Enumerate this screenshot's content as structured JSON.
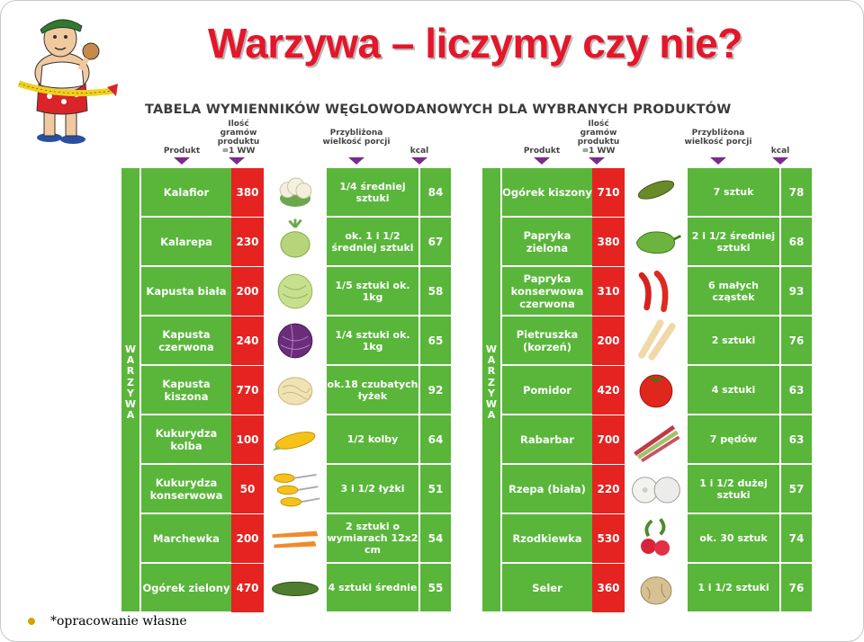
{
  "title": "Warzywa – liczymy czy nie?",
  "table_heading": "TABELA WYMIENNIKÓW WĘGLOWODANOWYCH DLA WYBRANYCH PRODUKTÓW",
  "columns": {
    "product": "Produkt",
    "grams": "Ilość gramów produktu =1 WW",
    "portion": "Przybliżona wielkość porcji",
    "kcal": "kcal"
  },
  "side_label": "WARZYWA",
  "left_rows": [
    {
      "name": "Kalafior",
      "ww": "380",
      "portion": "1/4 średniej sztuki",
      "kcal": "84",
      "icon": "cauliflower-icon"
    },
    {
      "name": "Kalarepa",
      "ww": "230",
      "portion": "ok. 1 i 1/2 średniej sztuki",
      "kcal": "67",
      "icon": "kohlrabi-icon"
    },
    {
      "name": "Kapusta biała",
      "ww": "200",
      "portion": "1/5 sztuki ok. 1kg",
      "kcal": "58",
      "icon": "white-cabbage-icon"
    },
    {
      "name": "Kapusta czerwona",
      "ww": "240",
      "portion": "1/4 sztuki ok. 1kg",
      "kcal": "65",
      "icon": "red-cabbage-icon"
    },
    {
      "name": "Kapusta kiszona",
      "ww": "770",
      "portion": "ok.18 czubatych łyżek",
      "kcal": "92",
      "icon": "sauerkraut-icon"
    },
    {
      "name": "Kukurydza kolba",
      "ww": "100",
      "portion": "1/2 kolby",
      "kcal": "64",
      "icon": "corn-cob-icon"
    },
    {
      "name": "Kukurydza konserwowa",
      "ww": "50",
      "portion": "3 i 1/2 łyżki",
      "kcal": "51",
      "icon": "canned-corn-icon"
    },
    {
      "name": "Marchewka",
      "ww": "200",
      "portion": "2 sztuki o wymiarach 12x2 cm",
      "kcal": "54",
      "icon": "carrot-icon"
    },
    {
      "name": "Ogórek zielony",
      "ww": "470",
      "portion": "4 sztuki średnie",
      "kcal": "55",
      "icon": "cucumber-icon"
    }
  ],
  "right_rows": [
    {
      "name": "Ogórek kiszony",
      "ww": "710",
      "portion": "7 sztuk",
      "kcal": "78",
      "icon": "pickle-icon"
    },
    {
      "name": "Papryka zielona",
      "ww": "380",
      "portion": "2 i 1/2 średniej sztuki",
      "kcal": "68",
      "icon": "green-pepper-icon"
    },
    {
      "name": "Papryka konserwowa czerwona",
      "ww": "310",
      "portion": "6 małych cząstek",
      "kcal": "93",
      "icon": "red-pepper-icon"
    },
    {
      "name": "Pietruszka (korzeń)",
      "ww": "200",
      "portion": "2 sztuki",
      "kcal": "76",
      "icon": "parsley-root-icon"
    },
    {
      "name": "Pomidor",
      "ww": "420",
      "portion": "4 sztuki",
      "kcal": "63",
      "icon": "tomato-icon"
    },
    {
      "name": "Rabarbar",
      "ww": "700",
      "portion": "7 pędów",
      "kcal": "63",
      "icon": "rhubarb-icon"
    },
    {
      "name": "Rzepa (biała)",
      "ww": "220",
      "portion": "1 i 1/2 dużej sztuki",
      "kcal": "57",
      "icon": "turnip-icon"
    },
    {
      "name": "Rzodkiewka",
      "ww": "530",
      "portion": "ok. 30 sztuk",
      "kcal": "74",
      "icon": "radish-icon"
    },
    {
      "name": "Seler",
      "ww": "360",
      "portion": "1 i 1/2 sztuki",
      "kcal": "76",
      "icon": "celery-root-icon"
    }
  ],
  "footnote": "*opracowanie własne",
  "colors": {
    "title": "#e4162a",
    "green": "#59b63a",
    "red": "#e52321",
    "arrow": "#7a2b8d"
  }
}
